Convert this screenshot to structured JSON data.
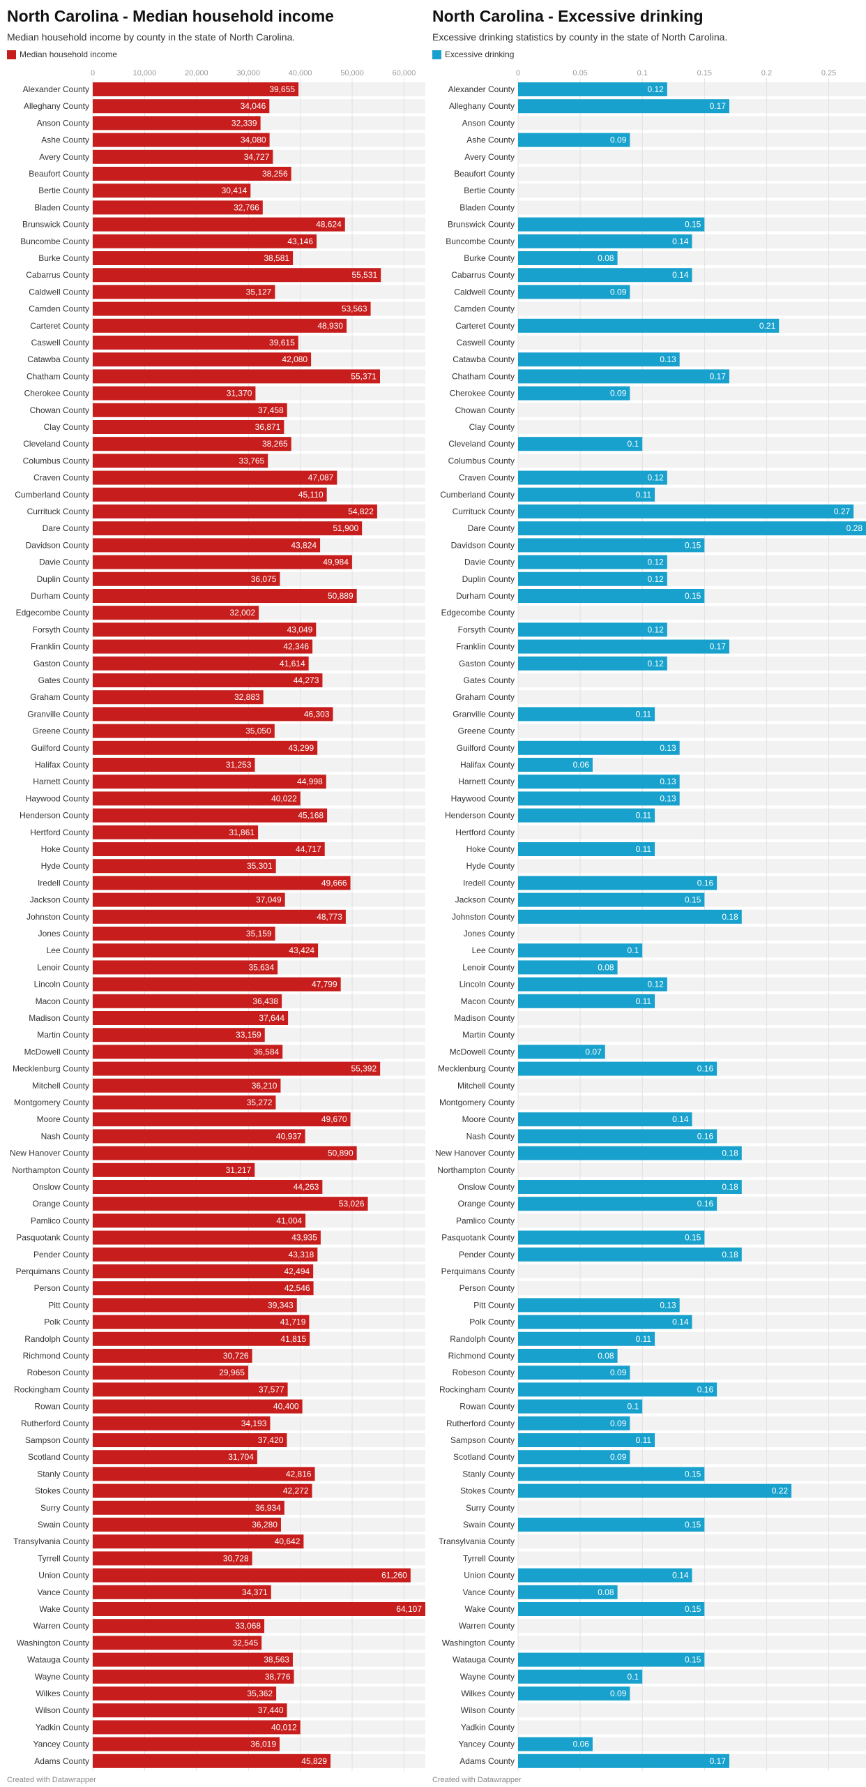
{
  "colors": {
    "income": "#c71e1d",
    "drinking": "#18a1cd",
    "row_bg": "#f2f2f2",
    "grid": "#e2e2e2"
  },
  "charts": [
    {
      "title": "North Carolina - Median household income",
      "subtitle": "Median household income by county in the state of North Carolina.",
      "legend": "Median household income",
      "credit": "Created with Datawrapper"
    },
    {
      "title": "North Carolina - Excessive drinking",
      "subtitle": "Excessive drinking statistics by county in the state of North Carolina.",
      "legend": "Excessive drinking",
      "credit": "Created with Datawrapper"
    }
  ],
  "chart_data": [
    {
      "type": "bar",
      "orientation": "horizontal",
      "series": [
        {
          "name": "Median household income",
          "color": "#c71e1d"
        }
      ],
      "xlim": [
        0,
        64107
      ],
      "ticks": [
        0,
        10000,
        20000,
        30000,
        40000,
        50000,
        60000
      ],
      "tick_labels": [
        "0",
        "10,000",
        "20,000",
        "30,000",
        "40,000",
        "50,000",
        "60,000"
      ],
      "categories": [
        "Alexander County",
        "Alleghany County",
        "Anson County",
        "Ashe County",
        "Avery County",
        "Beaufort County",
        "Bertie County",
        "Bladen County",
        "Brunswick County",
        "Buncombe County",
        "Burke County",
        "Cabarrus County",
        "Caldwell County",
        "Camden County",
        "Carteret County",
        "Caswell County",
        "Catawba County",
        "Chatham County",
        "Cherokee County",
        "Chowan County",
        "Clay County",
        "Cleveland County",
        "Columbus County",
        "Craven County",
        "Cumberland County",
        "Currituck County",
        "Dare County",
        "Davidson County",
        "Davie County",
        "Duplin County",
        "Durham County",
        "Edgecombe County",
        "Forsyth County",
        "Franklin County",
        "Gaston County",
        "Gates County",
        "Graham County",
        "Granville County",
        "Greene County",
        "Guilford County",
        "Halifax County",
        "Harnett County",
        "Haywood County",
        "Henderson County",
        "Hertford County",
        "Hoke County",
        "Hyde County",
        "Iredell County",
        "Jackson County",
        "Johnston County",
        "Jones County",
        "Lee County",
        "Lenoir County",
        "Lincoln County",
        "Macon County",
        "Madison County",
        "Martin County",
        "McDowell County",
        "Mecklenburg County",
        "Mitchell County",
        "Montgomery County",
        "Moore County",
        "Nash County",
        "New Hanover County",
        "Northampton County",
        "Onslow County",
        "Orange County",
        "Pamlico County",
        "Pasquotank County",
        "Pender County",
        "Perquimans County",
        "Person County",
        "Pitt County",
        "Polk County",
        "Randolph County",
        "Richmond County",
        "Robeson County",
        "Rockingham County",
        "Rowan County",
        "Rutherford County",
        "Sampson County",
        "Scotland County",
        "Stanly County",
        "Stokes County",
        "Surry County",
        "Swain County",
        "Transylvania County",
        "Tyrrell County",
        "Union County",
        "Vance County",
        "Wake County",
        "Warren County",
        "Washington County",
        "Watauga County",
        "Wayne County",
        "Wilkes County",
        "Wilson County",
        "Yadkin County",
        "Yancey County",
        "Adams County"
      ],
      "values": [
        39655,
        34046,
        32339,
        34080,
        34727,
        38256,
        30414,
        32766,
        48624,
        43146,
        38581,
        55531,
        35127,
        53563,
        48930,
        39615,
        42080,
        55371,
        31370,
        37458,
        36871,
        38265,
        33765,
        47087,
        45110,
        54822,
        51900,
        43824,
        49984,
        36075,
        50889,
        32002,
        43049,
        42346,
        41614,
        44273,
        32883,
        46303,
        35050,
        43299,
        31253,
        44998,
        40022,
        45168,
        31861,
        44717,
        35301,
        49666,
        37049,
        48773,
        35159,
        43424,
        35634,
        47799,
        36438,
        37644,
        33159,
        36584,
        55392,
        36210,
        35272,
        49670,
        40937,
        50890,
        31217,
        44263,
        53026,
        41004,
        43935,
        43318,
        42494,
        42546,
        39343,
        41719,
        41815,
        30726,
        29965,
        37577,
        40400,
        34193,
        37420,
        31704,
        42816,
        42272,
        36934,
        36280,
        40642,
        30728,
        61260,
        34371,
        64107,
        33068,
        32545,
        38563,
        38776,
        35362,
        37440,
        40012,
        36019,
        45829
      ],
      "value_labels": [
        "39,655",
        "34,046",
        "32,339",
        "34,080",
        "34,727",
        "38,256",
        "30,414",
        "32,766",
        "48,624",
        "43,146",
        "38,581",
        "55,531",
        "35,127",
        "53,563",
        "48,930",
        "39,615",
        "42,080",
        "55,371",
        "31,370",
        "37,458",
        "36,871",
        "38,265",
        "33,765",
        "47,087",
        "45,110",
        "54,822",
        "51,900",
        "43,824",
        "49,984",
        "36,075",
        "50,889",
        "32,002",
        "43,049",
        "42,346",
        "41,614",
        "44,273",
        "32,883",
        "46,303",
        "35,050",
        "43,299",
        "31,253",
        "44,998",
        "40,022",
        "45,168",
        "31,861",
        "44,717",
        "35,301",
        "49,666",
        "37,049",
        "48,773",
        "35,159",
        "43,424",
        "35,634",
        "47,799",
        "36,438",
        "37,644",
        "33,159",
        "36,584",
        "55,392",
        "36,210",
        "35,272",
        "49,670",
        "40,937",
        "50,890",
        "31,217",
        "44,263",
        "53,026",
        "41,004",
        "43,935",
        "43,318",
        "42,494",
        "42,546",
        "39,343",
        "41,719",
        "41,815",
        "30,726",
        "29,965",
        "37,577",
        "40,400",
        "34,193",
        "37,420",
        "31,704",
        "42,816",
        "42,272",
        "36,934",
        "36,280",
        "40,642",
        "30,728",
        "61,260",
        "34,371",
        "64,107",
        "33,068",
        "32,545",
        "38,563",
        "38,776",
        "35,362",
        "37,440",
        "40,012",
        "36,019",
        "45,829"
      ]
    },
    {
      "type": "bar",
      "orientation": "horizontal",
      "series": [
        {
          "name": "Excessive drinking",
          "color": "#18a1cd"
        }
      ],
      "xlim": [
        0,
        0.28
      ],
      "ticks": [
        0,
        0.05,
        0.1,
        0.15,
        0.2,
        0.25
      ],
      "tick_labels": [
        "0",
        "0.05",
        "0.1",
        "0.15",
        "0.2",
        "0.25"
      ],
      "categories": [
        "Alexander County",
        "Alleghany County",
        "Anson County",
        "Ashe County",
        "Avery County",
        "Beaufort County",
        "Bertie County",
        "Bladen County",
        "Brunswick County",
        "Buncombe County",
        "Burke County",
        "Cabarrus County",
        "Caldwell County",
        "Camden County",
        "Carteret County",
        "Caswell County",
        "Catawba County",
        "Chatham County",
        "Cherokee County",
        "Chowan County",
        "Clay County",
        "Cleveland County",
        "Columbus County",
        "Craven County",
        "Cumberland County",
        "Currituck County",
        "Dare County",
        "Davidson County",
        "Davie County",
        "Duplin County",
        "Durham County",
        "Edgecombe County",
        "Forsyth County",
        "Franklin County",
        "Gaston County",
        "Gates County",
        "Graham County",
        "Granville County",
        "Greene County",
        "Guilford County",
        "Halifax County",
        "Harnett County",
        "Haywood County",
        "Henderson County",
        "Hertford County",
        "Hoke County",
        "Hyde County",
        "Iredell County",
        "Jackson County",
        "Johnston County",
        "Jones County",
        "Lee County",
        "Lenoir County",
        "Lincoln County",
        "Macon County",
        "Madison County",
        "Martin County",
        "McDowell County",
        "Mecklenburg County",
        "Mitchell County",
        "Montgomery County",
        "Moore County",
        "Nash County",
        "New Hanover County",
        "Northampton County",
        "Onslow County",
        "Orange County",
        "Pamlico County",
        "Pasquotank County",
        "Pender County",
        "Perquimans County",
        "Person County",
        "Pitt County",
        "Polk County",
        "Randolph County",
        "Richmond County",
        "Robeson County",
        "Rockingham County",
        "Rowan County",
        "Rutherford County",
        "Sampson County",
        "Scotland County",
        "Stanly County",
        "Stokes County",
        "Surry County",
        "Swain County",
        "Transylvania County",
        "Tyrrell County",
        "Union County",
        "Vance County",
        "Wake County",
        "Warren County",
        "Washington County",
        "Watauga County",
        "Wayne County",
        "Wilkes County",
        "Wilson County",
        "Yadkin County",
        "Yancey County",
        "Adams County"
      ],
      "values": [
        0.12,
        0.17,
        null,
        0.09,
        null,
        null,
        null,
        null,
        0.15,
        0.14,
        0.08,
        0.14,
        0.09,
        null,
        0.21,
        null,
        0.13,
        0.17,
        0.09,
        null,
        null,
        0.1,
        null,
        0.12,
        0.11,
        0.27,
        0.28,
        0.15,
        0.12,
        0.12,
        0.15,
        null,
        0.12,
        0.17,
        0.12,
        null,
        null,
        0.11,
        null,
        0.13,
        0.06,
        0.13,
        0.13,
        0.11,
        null,
        0.11,
        null,
        0.16,
        0.15,
        0.18,
        null,
        0.1,
        0.08,
        0.12,
        0.11,
        null,
        null,
        0.07,
        0.16,
        null,
        null,
        0.14,
        0.16,
        0.18,
        null,
        0.18,
        0.16,
        null,
        0.15,
        0.18,
        null,
        null,
        0.13,
        0.14,
        0.11,
        0.08,
        0.09,
        0.16,
        0.1,
        0.09,
        0.11,
        0.09,
        0.15,
        0.22,
        null,
        0.15,
        null,
        null,
        0.14,
        0.08,
        0.15,
        null,
        null,
        0.15,
        0.1,
        0.09,
        null,
        null,
        0.06,
        0.17
      ],
      "value_labels": [
        "0.12",
        "0.17",
        "",
        "0.09",
        "",
        "",
        "",
        "",
        "0.15",
        "0.14",
        "0.08",
        "0.14",
        "0.09",
        "",
        "0.21",
        "",
        "0.13",
        "0.17",
        "0.09",
        "",
        "",
        "0.1",
        "",
        "0.12",
        "0.11",
        "0.27",
        "0.28",
        "0.15",
        "0.12",
        "0.12",
        "0.15",
        "",
        "0.12",
        "0.17",
        "0.12",
        "",
        "",
        "0.11",
        "",
        "0.13",
        "0.06",
        "0.13",
        "0.13",
        "0.11",
        "",
        "0.11",
        "",
        "0.16",
        "0.15",
        "0.18",
        "",
        "0.1",
        "0.08",
        "0.12",
        "0.11",
        "",
        "",
        "0.07",
        "0.16",
        "",
        "",
        "0.14",
        "0.16",
        "0.18",
        "",
        "0.18",
        "0.16",
        "",
        "0.15",
        "0.18",
        "",
        "",
        "0.13",
        "0.14",
        "0.11",
        "0.08",
        "0.09",
        "0.16",
        "0.1",
        "0.09",
        "0.11",
        "0.09",
        "0.15",
        "0.22",
        "",
        "0.15",
        "",
        "",
        "0.14",
        "0.08",
        "0.15",
        "",
        "",
        "0.15",
        "0.1",
        "0.09",
        "",
        "",
        "0.06",
        "0.17"
      ]
    }
  ]
}
